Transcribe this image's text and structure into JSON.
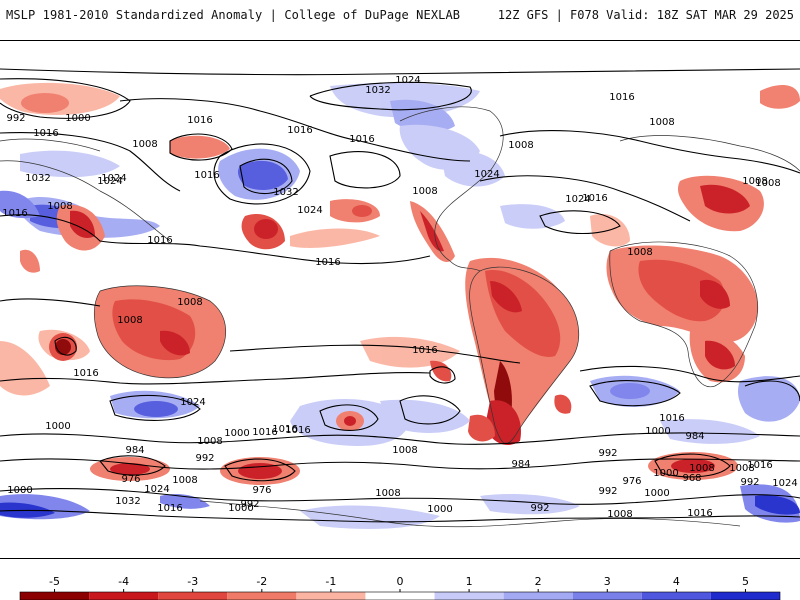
{
  "header": {
    "left": "MSLP 1981-2010 Standardized Anomaly | College of DuPage NEXLAB",
    "right": "12Z GFS | F078 Valid: 18Z SAT MAR 29 2025"
  },
  "colorbar": {
    "ticks": [
      "-5",
      "-4",
      "-3",
      "-2",
      "-1",
      "0",
      "1",
      "2",
      "3",
      "4",
      "5"
    ],
    "tick_values": [
      -5,
      -4,
      -3,
      -2,
      -1,
      0,
      1,
      2,
      3,
      4,
      5
    ],
    "colors": {
      "-5": "#8b0000",
      "-4": "#c9171e",
      "-3": "#e0463d",
      "-2": "#f07a68",
      "-1": "#fbb4a2",
      "0": "#ffffff",
      "1": "#c8cbf7",
      "2": "#a3a9f2",
      "3": "#7a80ea",
      "4": "#4f57de",
      "5": "#1f2bcc"
    }
  },
  "isobar_labels": [
    "1024",
    "1032",
    "1016",
    "992",
    "1000",
    "1016",
    "1008",
    "1016",
    "1016",
    "1016",
    "1008",
    "1032",
    "1024",
    "1008",
    "1024",
    "1016",
    "1016",
    "1008",
    "1032",
    "1024",
    "1016",
    "1016",
    "1008",
    "1024",
    "1024",
    "1008",
    "1016",
    "1008",
    "1008",
    "1008",
    "1016",
    "1008",
    "1016",
    "1016",
    "1024",
    "1000",
    "1008",
    "1000",
    "1016",
    "1008",
    "984",
    "992",
    "976",
    "1024",
    "1032",
    "1008",
    "1016",
    "1000",
    "976",
    "992",
    "1000",
    "1016",
    "1008",
    "992",
    "1000",
    "992",
    "1008",
    "1016",
    "1000",
    "984",
    "1008",
    "1016",
    "976",
    "968",
    "984",
    "992",
    "1000",
    "1024",
    "1008",
    "1016",
    "1000",
    "992"
  ]
}
